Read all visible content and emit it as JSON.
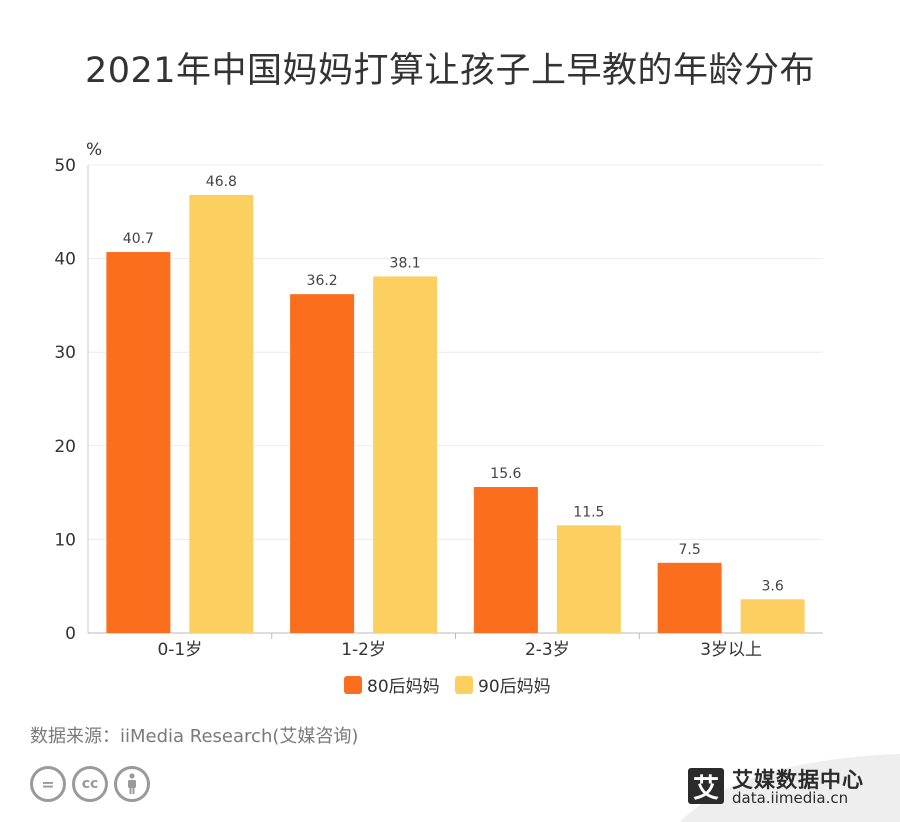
{
  "title": "2021年中国妈妈打算让孩子上早教的年龄分布",
  "chart_data": {
    "type": "bar",
    "title": "2021年中国妈妈打算让孩子上早教的年龄分布",
    "ylabel": "%",
    "xlabel": "",
    "ylim": [
      0,
      50
    ],
    "yticks": [
      0,
      10,
      20,
      30,
      40,
      50
    ],
    "categories": [
      "0-1岁",
      "1-2岁",
      "2-3岁",
      "3岁以上"
    ],
    "series": [
      {
        "name": "80后妈妈",
        "values": [
          40.7,
          36.2,
          15.6,
          7.5
        ],
        "color": "#fa6e1d"
      },
      {
        "name": "90后妈妈",
        "values": [
          46.8,
          38.1,
          11.5,
          3.6
        ],
        "color": "#fccf61"
      }
    ],
    "grid": true,
    "legend": "bottom-center"
  },
  "source": "数据来源：iiMedia Research(艾媒咨询)",
  "brand": {
    "logo_char": "艾",
    "name": "艾媒数据中心",
    "url": "data.iimedia.cn"
  },
  "license_icons": [
    "equals-icon",
    "cc-icon",
    "person-icon"
  ],
  "license_text": {
    "equals": "=",
    "cc": "cc"
  }
}
